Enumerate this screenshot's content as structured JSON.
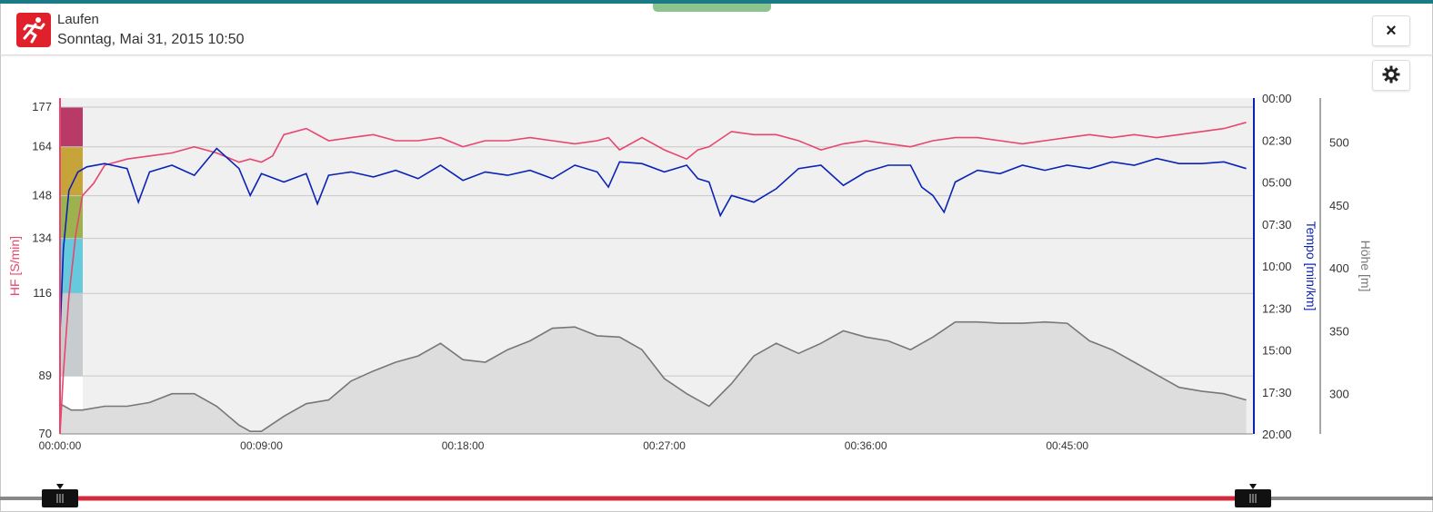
{
  "header": {
    "title": "Laufen",
    "subtitle": "Sonntag, Mai 31, 2015 10:50",
    "activity_icon": "running-icon",
    "close_label": "×",
    "settings_icon": "gear-icon"
  },
  "colors": {
    "accent_top": "#1a7a86",
    "activity_bg": "#e0202a",
    "hr_line": "#e8456f",
    "pace_line": "#0a23b4",
    "elevation_line": "#777777",
    "elevation_fill": "#dddddd",
    "plot_bg": "#f0f0f0",
    "range_bar": "#d22b3d",
    "zones": [
      "#b93a67",
      "#c6a43a",
      "#9bb24e",
      "#67c9dc",
      "#c7ccce"
    ]
  },
  "chart_data": {
    "type": "line",
    "x_tick_labels": [
      "00:00:00",
      "00:09:00",
      "00:18:00",
      "00:27:00",
      "00:36:00",
      "00:45:00"
    ],
    "x_tick_minutes": [
      0,
      9,
      18,
      27,
      36,
      45
    ],
    "xlim_minutes": [
      0,
      53.3
    ],
    "y_left": {
      "label": "HF [S/min]",
      "tick_labels": [
        "177",
        "164",
        "148",
        "134",
        "116",
        "89",
        "70"
      ],
      "tick_values": [
        177,
        164,
        148,
        134,
        116,
        89,
        70
      ],
      "zone_bounds": [
        [
          164,
          177
        ],
        [
          148,
          164
        ],
        [
          134,
          148
        ],
        [
          116,
          134
        ],
        [
          89,
          116
        ]
      ]
    },
    "y_pace": {
      "label": "Tempo [min/km]",
      "tick_labels": [
        "00:00",
        "02:30",
        "05:00",
        "07:30",
        "10:00",
        "12:30",
        "15:00",
        "17:30",
        "20:00"
      ],
      "tick_values": [
        0,
        2.5,
        5,
        7.5,
        10,
        12.5,
        15,
        17.5,
        20
      ],
      "reversed": true
    },
    "y_elev": {
      "label": "Höhe [m]",
      "tick_labels": [
        "500",
        "450",
        "400",
        "350",
        "300"
      ],
      "tick_values": [
        500,
        450,
        400,
        350,
        300
      ],
      "ylim": [
        268,
        535
      ]
    },
    "series": [
      {
        "name": "HF",
        "axis": "left",
        "points": [
          [
            0,
            70
          ],
          [
            0.15,
            90
          ],
          [
            0.4,
            115
          ],
          [
            0.7,
            135
          ],
          [
            1,
            148
          ],
          [
            1.5,
            152
          ],
          [
            2,
            158
          ],
          [
            3,
            160
          ],
          [
            4,
            161
          ],
          [
            5,
            162
          ],
          [
            6,
            164
          ],
          [
            7,
            162
          ],
          [
            8,
            159
          ],
          [
            8.5,
            160
          ],
          [
            9,
            159
          ],
          [
            9.5,
            161
          ],
          [
            10,
            168
          ],
          [
            11,
            170
          ],
          [
            12,
            166
          ],
          [
            13,
            167
          ],
          [
            14,
            168
          ],
          [
            15,
            166
          ],
          [
            16,
            166
          ],
          [
            17,
            167
          ],
          [
            18,
            164
          ],
          [
            19,
            166
          ],
          [
            20,
            166
          ],
          [
            21,
            167
          ],
          [
            22,
            166
          ],
          [
            23,
            165
          ],
          [
            24,
            166
          ],
          [
            24.5,
            167
          ],
          [
            25,
            163
          ],
          [
            26,
            167
          ],
          [
            27,
            163
          ],
          [
            28,
            160
          ],
          [
            28.5,
            163
          ],
          [
            29,
            164
          ],
          [
            30,
            169
          ],
          [
            31,
            168
          ],
          [
            32,
            168
          ],
          [
            33,
            166
          ],
          [
            34,
            163
          ],
          [
            35,
            165
          ],
          [
            36,
            166
          ],
          [
            37,
            165
          ],
          [
            38,
            164
          ],
          [
            39,
            166
          ],
          [
            40,
            167
          ],
          [
            41,
            167
          ],
          [
            42,
            166
          ],
          [
            43,
            165
          ],
          [
            44,
            166
          ],
          [
            45,
            167
          ],
          [
            46,
            168
          ],
          [
            47,
            167
          ],
          [
            48,
            168
          ],
          [
            49,
            167
          ],
          [
            50,
            168
          ],
          [
            51,
            169
          ],
          [
            52,
            170
          ],
          [
            53,
            172
          ]
        ]
      },
      {
        "name": "Tempo",
        "axis": "pace",
        "points": [
          [
            0,
            14
          ],
          [
            0.15,
            9
          ],
          [
            0.4,
            5.5
          ],
          [
            0.8,
            4.4
          ],
          [
            1.2,
            4.1
          ],
          [
            2,
            3.9
          ],
          [
            3,
            4.2
          ],
          [
            3.5,
            6.2
          ],
          [
            4,
            4.4
          ],
          [
            5,
            4.0
          ],
          [
            6,
            4.6
          ],
          [
            7,
            3.0
          ],
          [
            8,
            4.2
          ],
          [
            8.5,
            5.8
          ],
          [
            9,
            4.5
          ],
          [
            10,
            5.0
          ],
          [
            11,
            4.5
          ],
          [
            11.5,
            6.3
          ],
          [
            12,
            4.6
          ],
          [
            13,
            4.4
          ],
          [
            14,
            4.7
          ],
          [
            15,
            4.3
          ],
          [
            16,
            4.8
          ],
          [
            17,
            4.0
          ],
          [
            18,
            4.9
          ],
          [
            19,
            4.4
          ],
          [
            20,
            4.6
          ],
          [
            21,
            4.3
          ],
          [
            22,
            4.8
          ],
          [
            23,
            4.0
          ],
          [
            24,
            4.4
          ],
          [
            24.5,
            5.3
          ],
          [
            25,
            3.8
          ],
          [
            26,
            3.9
          ],
          [
            27,
            4.4
          ],
          [
            28,
            4.0
          ],
          [
            28.5,
            4.8
          ],
          [
            29,
            5.0
          ],
          [
            29.5,
            7.0
          ],
          [
            30,
            5.8
          ],
          [
            31,
            6.2
          ],
          [
            32,
            5.4
          ],
          [
            33,
            4.2
          ],
          [
            34,
            4.0
          ],
          [
            35,
            5.2
          ],
          [
            36,
            4.4
          ],
          [
            37,
            4.0
          ],
          [
            38,
            4.0
          ],
          [
            38.5,
            5.3
          ],
          [
            39,
            5.8
          ],
          [
            39.5,
            6.8
          ],
          [
            40,
            5.0
          ],
          [
            41,
            4.3
          ],
          [
            42,
            4.5
          ],
          [
            43,
            4.0
          ],
          [
            44,
            4.3
          ],
          [
            45,
            4.0
          ],
          [
            46,
            4.2
          ],
          [
            47,
            3.8
          ],
          [
            48,
            4.0
          ],
          [
            49,
            3.6
          ],
          [
            50,
            3.9
          ],
          [
            51,
            3.9
          ],
          [
            52,
            3.8
          ],
          [
            53,
            4.2
          ]
        ]
      },
      {
        "name": "Höhe",
        "axis": "elev",
        "points": [
          [
            0,
            292
          ],
          [
            0.5,
            287
          ],
          [
            1,
            287
          ],
          [
            2,
            290
          ],
          [
            3,
            290
          ],
          [
            4,
            293
          ],
          [
            5,
            300
          ],
          [
            6,
            300
          ],
          [
            7,
            290
          ],
          [
            8,
            275
          ],
          [
            8.5,
            270
          ],
          [
            9,
            270
          ],
          [
            10,
            282
          ],
          [
            11,
            292
          ],
          [
            12,
            295
          ],
          [
            13,
            310
          ],
          [
            14,
            318
          ],
          [
            15,
            325
          ],
          [
            16,
            330
          ],
          [
            17,
            340
          ],
          [
            18,
            327
          ],
          [
            19,
            325
          ],
          [
            20,
            335
          ],
          [
            21,
            342
          ],
          [
            22,
            352
          ],
          [
            23,
            353
          ],
          [
            24,
            346
          ],
          [
            25,
            345
          ],
          [
            26,
            335
          ],
          [
            27,
            312
          ],
          [
            28,
            300
          ],
          [
            29,
            290
          ],
          [
            30,
            308
          ],
          [
            31,
            330
          ],
          [
            32,
            340
          ],
          [
            33,
            332
          ],
          [
            34,
            340
          ],
          [
            35,
            350
          ],
          [
            36,
            345
          ],
          [
            37,
            342
          ],
          [
            38,
            335
          ],
          [
            39,
            345
          ],
          [
            40,
            357
          ],
          [
            41,
            357
          ],
          [
            42,
            356
          ],
          [
            43,
            356
          ],
          [
            44,
            357
          ],
          [
            45,
            356
          ],
          [
            46,
            342
          ],
          [
            47,
            335
          ],
          [
            48,
            325
          ],
          [
            49,
            315
          ],
          [
            50,
            305
          ],
          [
            51,
            302
          ],
          [
            52,
            300
          ],
          [
            53,
            295
          ]
        ]
      }
    ]
  }
}
